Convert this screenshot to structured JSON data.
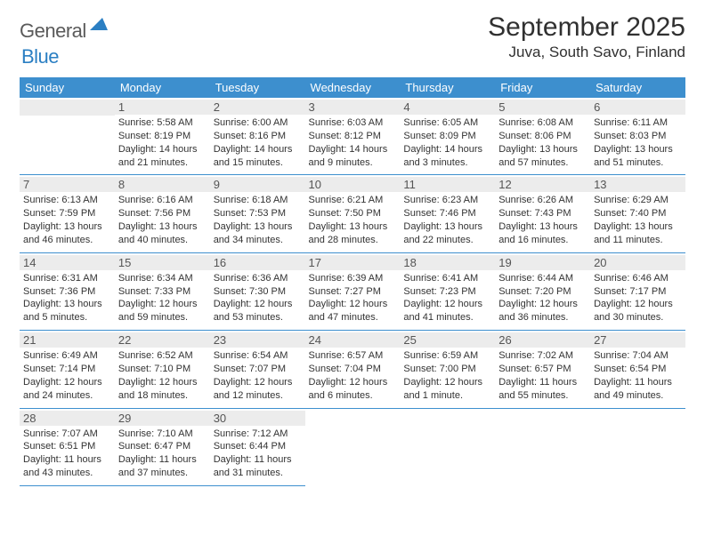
{
  "brand": {
    "part1": "General",
    "part2": "Blue"
  },
  "title": "September 2025",
  "location": "Juva, South Savo, Finland",
  "colors": {
    "header_bg": "#3d8fce",
    "header_text": "#ffffff",
    "daynum_bg": "#ececec",
    "rule": "#3d8fce",
    "logo_blue": "#2b7fc3",
    "text": "#333333"
  },
  "typography": {
    "title_fontsize": 30,
    "location_fontsize": 17,
    "dow_fontsize": 13,
    "body_fontsize": 11
  },
  "daysOfWeek": [
    "Sunday",
    "Monday",
    "Tuesday",
    "Wednesday",
    "Thursday",
    "Friday",
    "Saturday"
  ],
  "weeks": [
    [
      null,
      {
        "n": "1",
        "sr": "Sunrise: 5:58 AM",
        "ss": "Sunset: 8:19 PM",
        "dl1": "Daylight: 14 hours",
        "dl2": "and 21 minutes."
      },
      {
        "n": "2",
        "sr": "Sunrise: 6:00 AM",
        "ss": "Sunset: 8:16 PM",
        "dl1": "Daylight: 14 hours",
        "dl2": "and 15 minutes."
      },
      {
        "n": "3",
        "sr": "Sunrise: 6:03 AM",
        "ss": "Sunset: 8:12 PM",
        "dl1": "Daylight: 14 hours",
        "dl2": "and 9 minutes."
      },
      {
        "n": "4",
        "sr": "Sunrise: 6:05 AM",
        "ss": "Sunset: 8:09 PM",
        "dl1": "Daylight: 14 hours",
        "dl2": "and 3 minutes."
      },
      {
        "n": "5",
        "sr": "Sunrise: 6:08 AM",
        "ss": "Sunset: 8:06 PM",
        "dl1": "Daylight: 13 hours",
        "dl2": "and 57 minutes."
      },
      {
        "n": "6",
        "sr": "Sunrise: 6:11 AM",
        "ss": "Sunset: 8:03 PM",
        "dl1": "Daylight: 13 hours",
        "dl2": "and 51 minutes."
      }
    ],
    [
      {
        "n": "7",
        "sr": "Sunrise: 6:13 AM",
        "ss": "Sunset: 7:59 PM",
        "dl1": "Daylight: 13 hours",
        "dl2": "and 46 minutes."
      },
      {
        "n": "8",
        "sr": "Sunrise: 6:16 AM",
        "ss": "Sunset: 7:56 PM",
        "dl1": "Daylight: 13 hours",
        "dl2": "and 40 minutes."
      },
      {
        "n": "9",
        "sr": "Sunrise: 6:18 AM",
        "ss": "Sunset: 7:53 PM",
        "dl1": "Daylight: 13 hours",
        "dl2": "and 34 minutes."
      },
      {
        "n": "10",
        "sr": "Sunrise: 6:21 AM",
        "ss": "Sunset: 7:50 PM",
        "dl1": "Daylight: 13 hours",
        "dl2": "and 28 minutes."
      },
      {
        "n": "11",
        "sr": "Sunrise: 6:23 AM",
        "ss": "Sunset: 7:46 PM",
        "dl1": "Daylight: 13 hours",
        "dl2": "and 22 minutes."
      },
      {
        "n": "12",
        "sr": "Sunrise: 6:26 AM",
        "ss": "Sunset: 7:43 PM",
        "dl1": "Daylight: 13 hours",
        "dl2": "and 16 minutes."
      },
      {
        "n": "13",
        "sr": "Sunrise: 6:29 AM",
        "ss": "Sunset: 7:40 PM",
        "dl1": "Daylight: 13 hours",
        "dl2": "and 11 minutes."
      }
    ],
    [
      {
        "n": "14",
        "sr": "Sunrise: 6:31 AM",
        "ss": "Sunset: 7:36 PM",
        "dl1": "Daylight: 13 hours",
        "dl2": "and 5 minutes."
      },
      {
        "n": "15",
        "sr": "Sunrise: 6:34 AM",
        "ss": "Sunset: 7:33 PM",
        "dl1": "Daylight: 12 hours",
        "dl2": "and 59 minutes."
      },
      {
        "n": "16",
        "sr": "Sunrise: 6:36 AM",
        "ss": "Sunset: 7:30 PM",
        "dl1": "Daylight: 12 hours",
        "dl2": "and 53 minutes."
      },
      {
        "n": "17",
        "sr": "Sunrise: 6:39 AM",
        "ss": "Sunset: 7:27 PM",
        "dl1": "Daylight: 12 hours",
        "dl2": "and 47 minutes."
      },
      {
        "n": "18",
        "sr": "Sunrise: 6:41 AM",
        "ss": "Sunset: 7:23 PM",
        "dl1": "Daylight: 12 hours",
        "dl2": "and 41 minutes."
      },
      {
        "n": "19",
        "sr": "Sunrise: 6:44 AM",
        "ss": "Sunset: 7:20 PM",
        "dl1": "Daylight: 12 hours",
        "dl2": "and 36 minutes."
      },
      {
        "n": "20",
        "sr": "Sunrise: 6:46 AM",
        "ss": "Sunset: 7:17 PM",
        "dl1": "Daylight: 12 hours",
        "dl2": "and 30 minutes."
      }
    ],
    [
      {
        "n": "21",
        "sr": "Sunrise: 6:49 AM",
        "ss": "Sunset: 7:14 PM",
        "dl1": "Daylight: 12 hours",
        "dl2": "and 24 minutes."
      },
      {
        "n": "22",
        "sr": "Sunrise: 6:52 AM",
        "ss": "Sunset: 7:10 PM",
        "dl1": "Daylight: 12 hours",
        "dl2": "and 18 minutes."
      },
      {
        "n": "23",
        "sr": "Sunrise: 6:54 AM",
        "ss": "Sunset: 7:07 PM",
        "dl1": "Daylight: 12 hours",
        "dl2": "and 12 minutes."
      },
      {
        "n": "24",
        "sr": "Sunrise: 6:57 AM",
        "ss": "Sunset: 7:04 PM",
        "dl1": "Daylight: 12 hours",
        "dl2": "and 6 minutes."
      },
      {
        "n": "25",
        "sr": "Sunrise: 6:59 AM",
        "ss": "Sunset: 7:00 PM",
        "dl1": "Daylight: 12 hours",
        "dl2": "and 1 minute."
      },
      {
        "n": "26",
        "sr": "Sunrise: 7:02 AM",
        "ss": "Sunset: 6:57 PM",
        "dl1": "Daylight: 11 hours",
        "dl2": "and 55 minutes."
      },
      {
        "n": "27",
        "sr": "Sunrise: 7:04 AM",
        "ss": "Sunset: 6:54 PM",
        "dl1": "Daylight: 11 hours",
        "dl2": "and 49 minutes."
      }
    ],
    [
      {
        "n": "28",
        "sr": "Sunrise: 7:07 AM",
        "ss": "Sunset: 6:51 PM",
        "dl1": "Daylight: 11 hours",
        "dl2": "and 43 minutes."
      },
      {
        "n": "29",
        "sr": "Sunrise: 7:10 AM",
        "ss": "Sunset: 6:47 PM",
        "dl1": "Daylight: 11 hours",
        "dl2": "and 37 minutes."
      },
      {
        "n": "30",
        "sr": "Sunrise: 7:12 AM",
        "ss": "Sunset: 6:44 PM",
        "dl1": "Daylight: 11 hours",
        "dl2": "and 31 minutes."
      },
      null,
      null,
      null,
      null
    ]
  ]
}
